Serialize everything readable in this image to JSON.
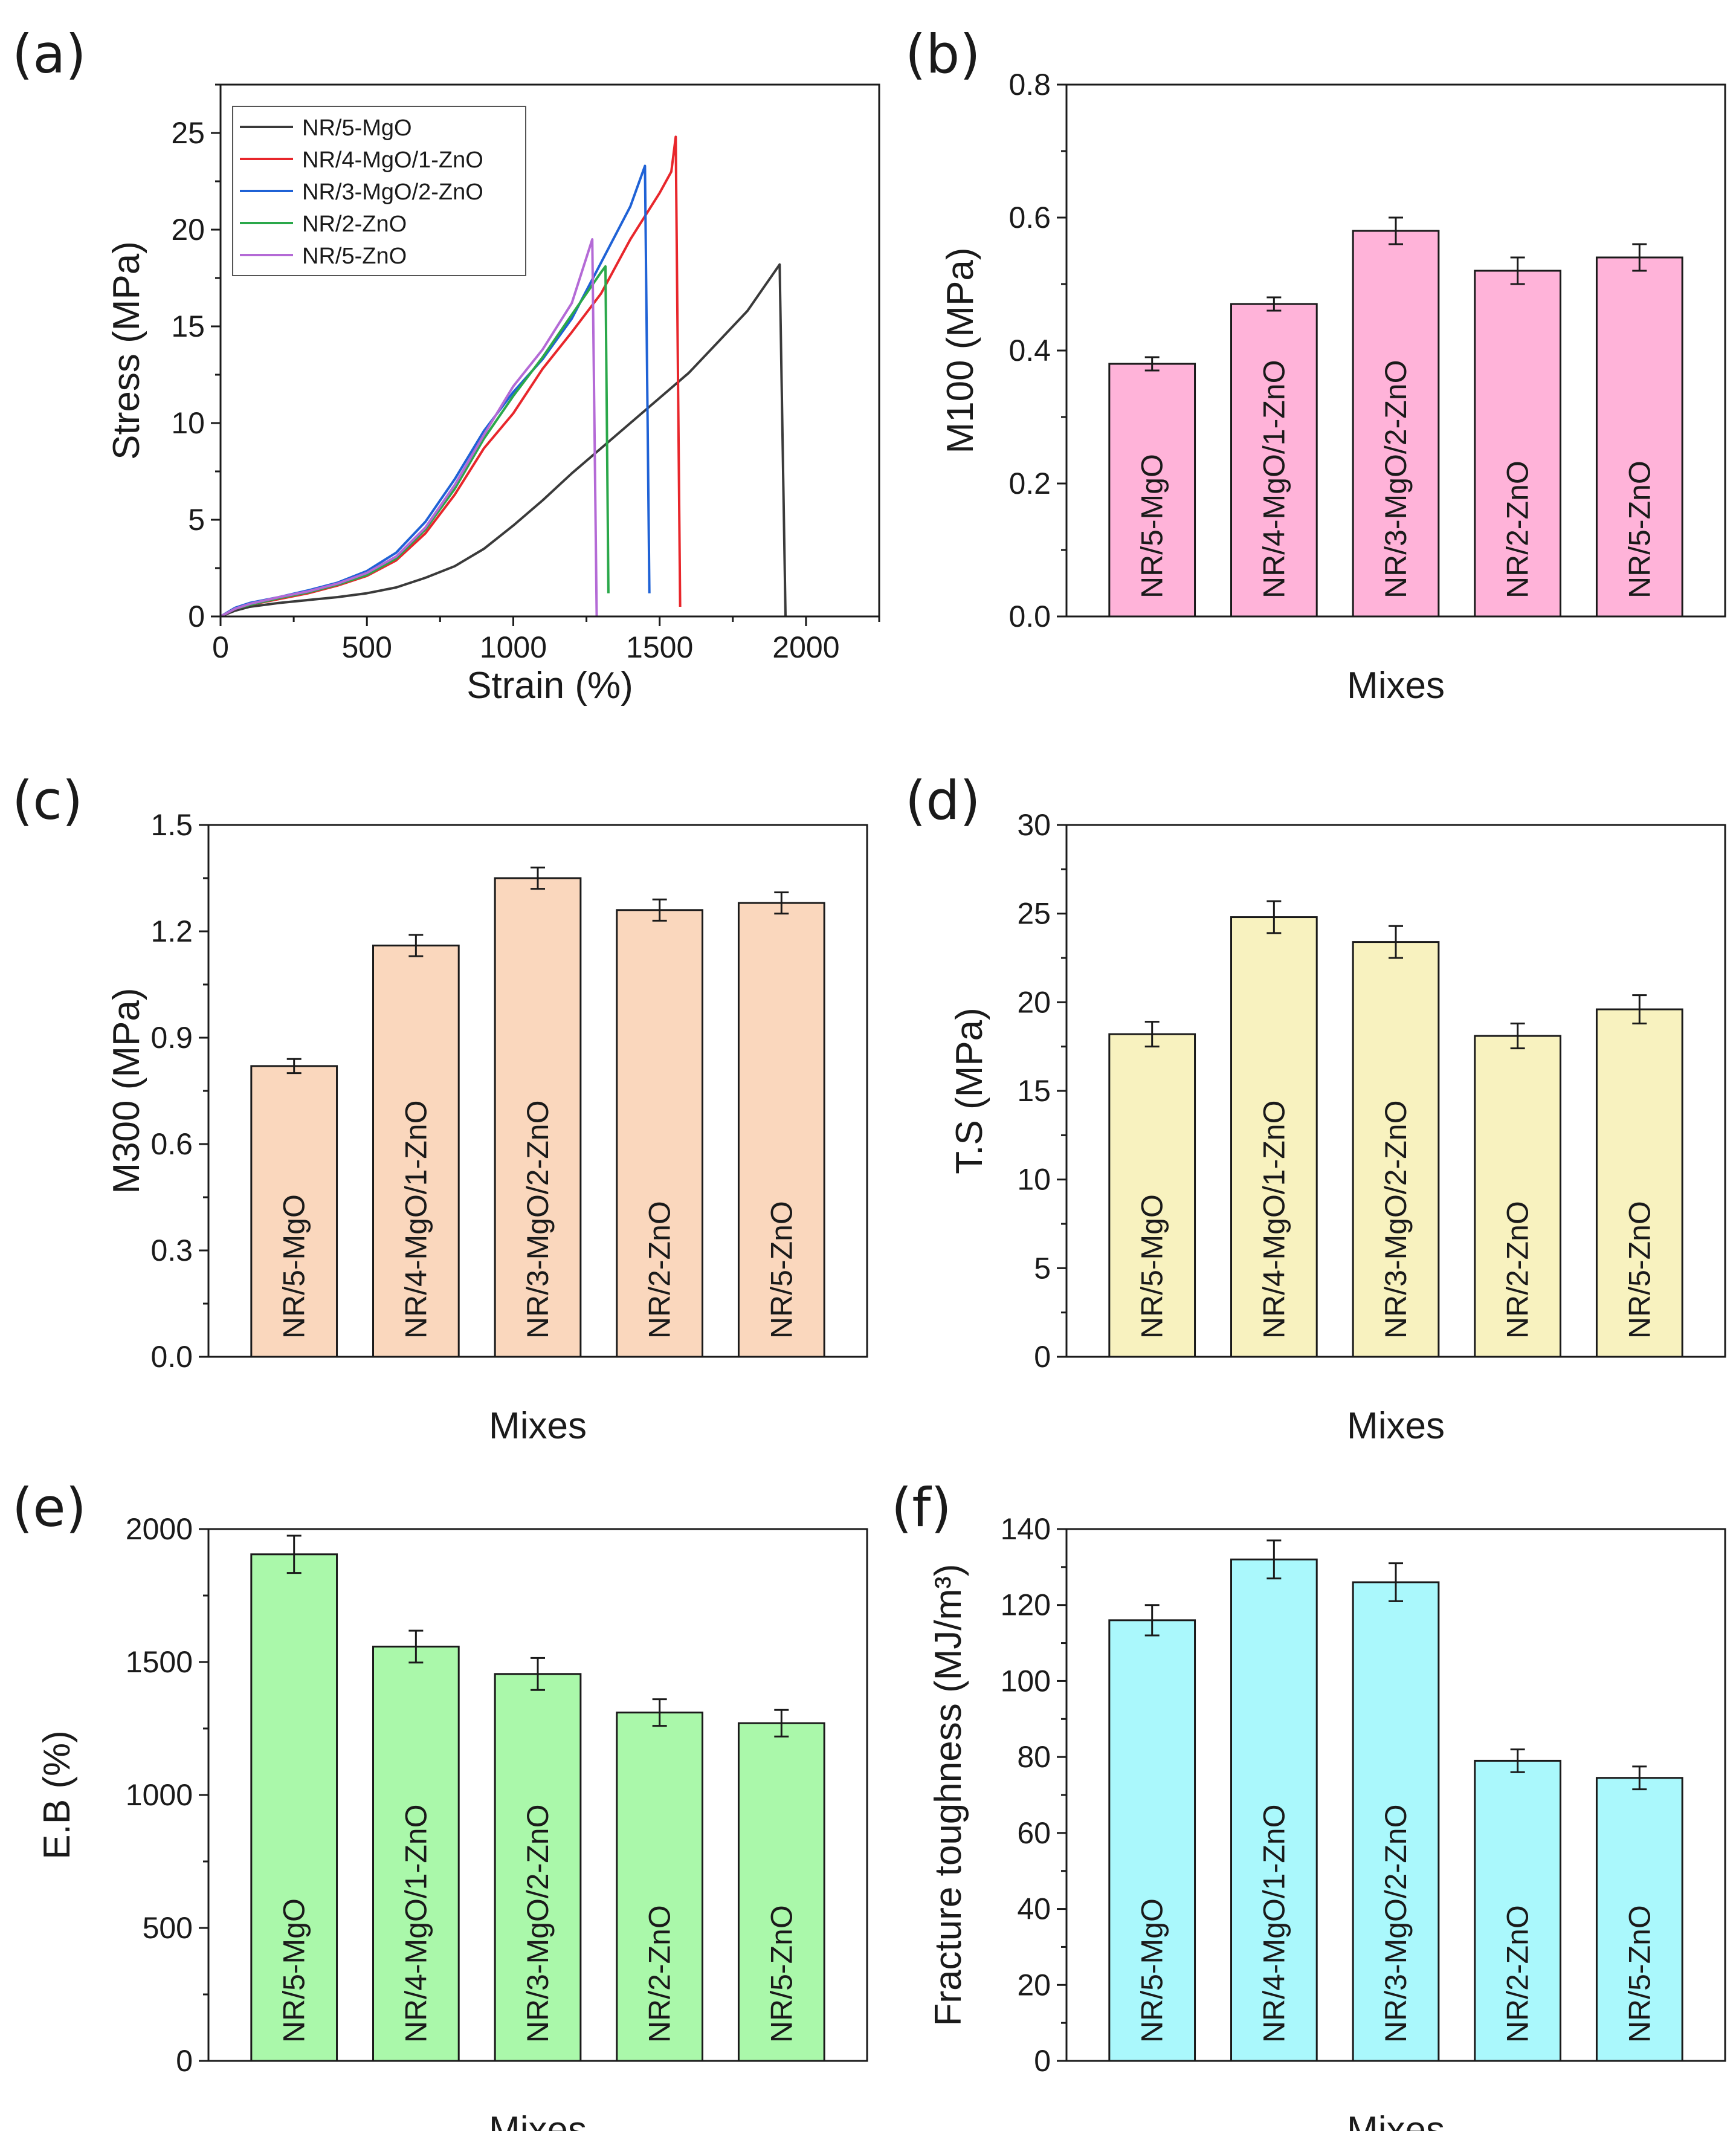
{
  "figure": {
    "categories": [
      "NR/5-MgO",
      "NR/4-MgO/1-ZnO",
      "NR/3-MgO/2-ZnO",
      "NR/2-ZnO",
      "NR/5-ZnO"
    ]
  },
  "chart_data": [
    {
      "id": "a",
      "panel_label": "(a)",
      "type": "line",
      "xlabel": "Strain (%)",
      "ylabel": "Stress (MPa)",
      "xlim": [
        0,
        2250
      ],
      "ylim": [
        0,
        27.5
      ],
      "xticks": [
        0,
        500,
        1000,
        1500,
        2000
      ],
      "yticks": [
        0,
        5,
        10,
        15,
        20,
        25
      ],
      "legend_position": "top-left",
      "series": [
        {
          "name": "NR/5-MgO",
          "color": "#3a3a3a",
          "x": [
            0,
            50,
            100,
            200,
            300,
            400,
            500,
            600,
            700,
            800,
            900,
            1000,
            1100,
            1200,
            1300,
            1400,
            1500,
            1600,
            1700,
            1800,
            1910,
            1930
          ],
          "y": [
            0,
            0.3,
            0.5,
            0.7,
            0.85,
            1.0,
            1.2,
            1.5,
            2.0,
            2.6,
            3.5,
            4.7,
            6.0,
            7.4,
            8.7,
            10.0,
            11.3,
            12.6,
            14.2,
            15.8,
            18.2,
            0
          ]
        },
        {
          "name": "NR/4-MgO/1-ZnO",
          "color": "#e8262b",
          "x": [
            0,
            50,
            100,
            200,
            300,
            400,
            500,
            600,
            700,
            800,
            900,
            1000,
            1100,
            1200,
            1300,
            1400,
            1500,
            1540,
            1555,
            1570
          ],
          "y": [
            0,
            0.4,
            0.6,
            0.9,
            1.2,
            1.6,
            2.1,
            2.9,
            4.3,
            6.3,
            8.7,
            10.5,
            12.8,
            14.7,
            16.7,
            19.5,
            21.9,
            23.0,
            24.8,
            0.5
          ]
        },
        {
          "name": "NR/3-MgO/2-ZnO",
          "color": "#1f62d6",
          "x": [
            0,
            50,
            100,
            200,
            300,
            400,
            500,
            600,
            700,
            800,
            900,
            1000,
            1100,
            1200,
            1300,
            1400,
            1450,
            1465
          ],
          "y": [
            0,
            0.45,
            0.7,
            1.0,
            1.35,
            1.75,
            2.35,
            3.3,
            4.9,
            7.1,
            9.6,
            11.6,
            13.3,
            15.4,
            18.3,
            21.2,
            23.3,
            1.2
          ]
        },
        {
          "name": "NR/2-ZnO",
          "color": "#2aa84a",
          "x": [
            0,
            50,
            100,
            200,
            300,
            400,
            500,
            600,
            700,
            800,
            900,
            1000,
            1100,
            1200,
            1300,
            1315,
            1325
          ],
          "y": [
            0,
            0.4,
            0.6,
            0.95,
            1.25,
            1.65,
            2.15,
            3.0,
            4.5,
            6.6,
            9.2,
            11.4,
            13.4,
            15.6,
            17.8,
            18.1,
            1.2
          ]
        },
        {
          "name": "NR/5-ZnO",
          "color": "#b46ad6",
          "x": [
            0,
            50,
            100,
            200,
            300,
            400,
            500,
            600,
            700,
            800,
            900,
            1000,
            1100,
            1200,
            1270,
            1285
          ],
          "y": [
            0,
            0.4,
            0.65,
            1.0,
            1.3,
            1.7,
            2.25,
            3.1,
            4.6,
            6.8,
            9.4,
            11.9,
            13.8,
            16.2,
            19.5,
            0
          ]
        }
      ]
    },
    {
      "id": "b",
      "panel_label": "(b)",
      "type": "bar",
      "xlabel": "Mixes",
      "ylabel": "M100 (MPa)",
      "ylim": [
        0,
        0.8
      ],
      "yticks": [
        "0.0",
        "0.2",
        "0.4",
        "0.6",
        "0.8"
      ],
      "bar_color": "#ffb3d9",
      "values": [
        0.38,
        0.47,
        0.58,
        0.52,
        0.54
      ],
      "errors": [
        0.01,
        0.01,
        0.02,
        0.02,
        0.02
      ]
    },
    {
      "id": "c",
      "panel_label": "(c)",
      "type": "bar",
      "xlabel": "Mixes",
      "ylabel": "M300 (MPa)",
      "ylim": [
        0,
        1.5
      ],
      "yticks": [
        "0.0",
        "0.3",
        "0.6",
        "0.9",
        "1.2",
        "1.5"
      ],
      "bar_color": "#fad7bd",
      "values": [
        0.82,
        1.16,
        1.35,
        1.26,
        1.28
      ],
      "errors": [
        0.02,
        0.03,
        0.03,
        0.03,
        0.03
      ]
    },
    {
      "id": "d",
      "panel_label": "(d)",
      "type": "bar",
      "xlabel": "Mixes",
      "ylabel": "T.S (MPa)",
      "ylim": [
        0,
        30
      ],
      "yticks": [
        "0",
        "5",
        "10",
        "15",
        "20",
        "25",
        "30"
      ],
      "bar_color": "#f8f2bf",
      "values": [
        18.2,
        24.8,
        23.4,
        18.1,
        19.6
      ],
      "errors": [
        0.7,
        0.9,
        0.9,
        0.7,
        0.8
      ]
    },
    {
      "id": "e",
      "panel_label": "(e)",
      "type": "bar",
      "xlabel": "Mixes",
      "ylabel": "E.B (%)",
      "ylim": [
        0,
        2000
      ],
      "yticks": [
        "0",
        "500",
        "1000",
        "1500",
        "2000"
      ],
      "bar_color": "#aaf8aa",
      "values": [
        1905,
        1558,
        1455,
        1310,
        1270
      ],
      "errors": [
        70,
        60,
        60,
        50,
        50
      ]
    },
    {
      "id": "f",
      "panel_label": "(f)",
      "type": "bar",
      "xlabel": "Mixes",
      "ylabel": "Fracture toughness (MJ/m³)",
      "ylim": [
        0,
        140
      ],
      "yticks": [
        "0",
        "20",
        "40",
        "60",
        "80",
        "100",
        "120",
        "140"
      ],
      "bar_color": "#aaf8fc",
      "values": [
        116,
        132,
        126,
        79,
        74.5
      ],
      "errors": [
        4,
        5,
        5,
        3,
        3
      ]
    }
  ]
}
